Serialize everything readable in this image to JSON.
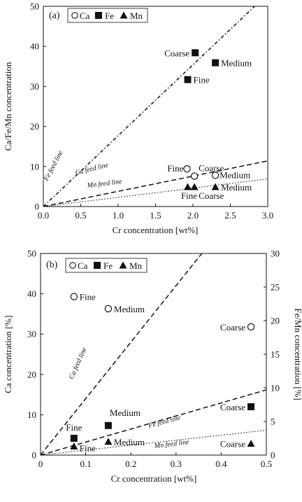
{
  "chart_data": [
    {
      "type": "scatter",
      "panel_label": "(a)",
      "xlabel": "Cr concentration [wt%]",
      "ylabel": "Ca/Fe/Mn concentration",
      "xlim": [
        0,
        3.0
      ],
      "ylim": [
        0,
        50
      ],
      "x_ticks": [
        "0.0",
        "0.5",
        "1.0",
        "1.5",
        "2.0",
        "2.5",
        "3.0"
      ],
      "y_ticks": [
        "0",
        "10",
        "20",
        "30",
        "40",
        "50"
      ],
      "legend": {
        "placement": "top-left",
        "entries": [
          {
            "label": "Ca",
            "marker": "open-circle"
          },
          {
            "label": "Fe",
            "marker": "filled-square"
          },
          {
            "label": "Mn",
            "marker": "filled-triangle"
          }
        ]
      },
      "series": [
        {
          "name": "Ca",
          "marker": "open-circle",
          "points": [
            {
              "x": 1.92,
              "y": 9.4,
              "label": "Fine"
            },
            {
              "x": 2.02,
              "y": 7.6,
              "label": "Coarse"
            },
            {
              "x": 2.3,
              "y": 7.8,
              "label": "Medium"
            }
          ]
        },
        {
          "name": "Fe",
          "marker": "filled-square",
          "points": [
            {
              "x": 2.03,
              "y": 38.4,
              "label": "Coarse"
            },
            {
              "x": 2.3,
              "y": 35.9,
              "label": "Medium"
            },
            {
              "x": 1.93,
              "y": 31.7,
              "label": "Fine"
            }
          ]
        },
        {
          "name": "Mn",
          "marker": "filled-triangle",
          "points": [
            {
              "x": 1.93,
              "y": 4.9,
              "label": "Fine"
            },
            {
              "x": 2.02,
              "y": 4.9,
              "label": "Coarse"
            },
            {
              "x": 2.3,
              "y": 4.9,
              "label": "Medium"
            }
          ]
        }
      ],
      "feed_lines": [
        {
          "label": "Fe feed line",
          "style": "dash-dot",
          "slope": 17.7
        },
        {
          "label": "Ca feed line",
          "style": "dashed",
          "slope": 3.8
        },
        {
          "label": "Mn feed line",
          "style": "dotted",
          "slope": 2.3
        }
      ]
    },
    {
      "type": "scatter",
      "panel_label": "(b)",
      "xlabel": "Cr concentration [wt%]",
      "ylabel": "Ca concentration [%]",
      "ylabel_right": "Fe/Mn concentration [%]",
      "xlim": [
        0,
        0.5
      ],
      "ylim": [
        0,
        50
      ],
      "ylim_right": [
        0,
        30
      ],
      "x_ticks": [
        "0",
        "0.1",
        "0.2",
        "0.3",
        "0.4",
        "0.5"
      ],
      "y_ticks": [
        "0",
        "10",
        "20",
        "30",
        "40",
        "50"
      ],
      "y_ticks_right": [
        "0",
        "5",
        "10",
        "15",
        "20",
        "25",
        "30"
      ],
      "legend": {
        "placement": "top-left",
        "entries": [
          {
            "label": "Ca",
            "marker": "open-circle"
          },
          {
            "label": "Fe",
            "marker": "filled-square"
          },
          {
            "label": "Mn",
            "marker": "filled-triangle"
          }
        ]
      },
      "series": [
        {
          "name": "Ca",
          "axis": "left",
          "marker": "open-circle",
          "points": [
            {
              "x": 0.074,
              "y": 39.3,
              "label": "Fine"
            },
            {
              "x": 0.15,
              "y": 36.3,
              "label": "Medium"
            },
            {
              "x": 0.466,
              "y": 31.8,
              "label": "Coarse"
            }
          ]
        },
        {
          "name": "Fe",
          "axis": "right",
          "marker": "filled-square",
          "points": [
            {
              "x": 0.074,
              "y": 2.5,
              "label": "Fine"
            },
            {
              "x": 0.15,
              "y": 4.4,
              "label": "Medium"
            },
            {
              "x": 0.466,
              "y": 7.2,
              "label": "Coarse"
            }
          ]
        },
        {
          "name": "Mn",
          "axis": "right",
          "marker": "filled-triangle",
          "points": [
            {
              "x": 0.074,
              "y": 1.3,
              "label": "Fine"
            },
            {
              "x": 0.15,
              "y": 2.0,
              "label": "Medium"
            },
            {
              "x": 0.466,
              "y": 1.7,
              "label": "Coarse"
            }
          ]
        }
      ],
      "feed_lines": [
        {
          "label": "Ca feed line",
          "axis": "left",
          "style": "dashed",
          "slope": 140
        },
        {
          "label": "Fe feed line",
          "axis": "right",
          "style": "dashed",
          "slope": 19.4
        },
        {
          "label": "Mn feed line",
          "axis": "right",
          "style": "dotted",
          "slope": 7.4
        }
      ]
    }
  ]
}
